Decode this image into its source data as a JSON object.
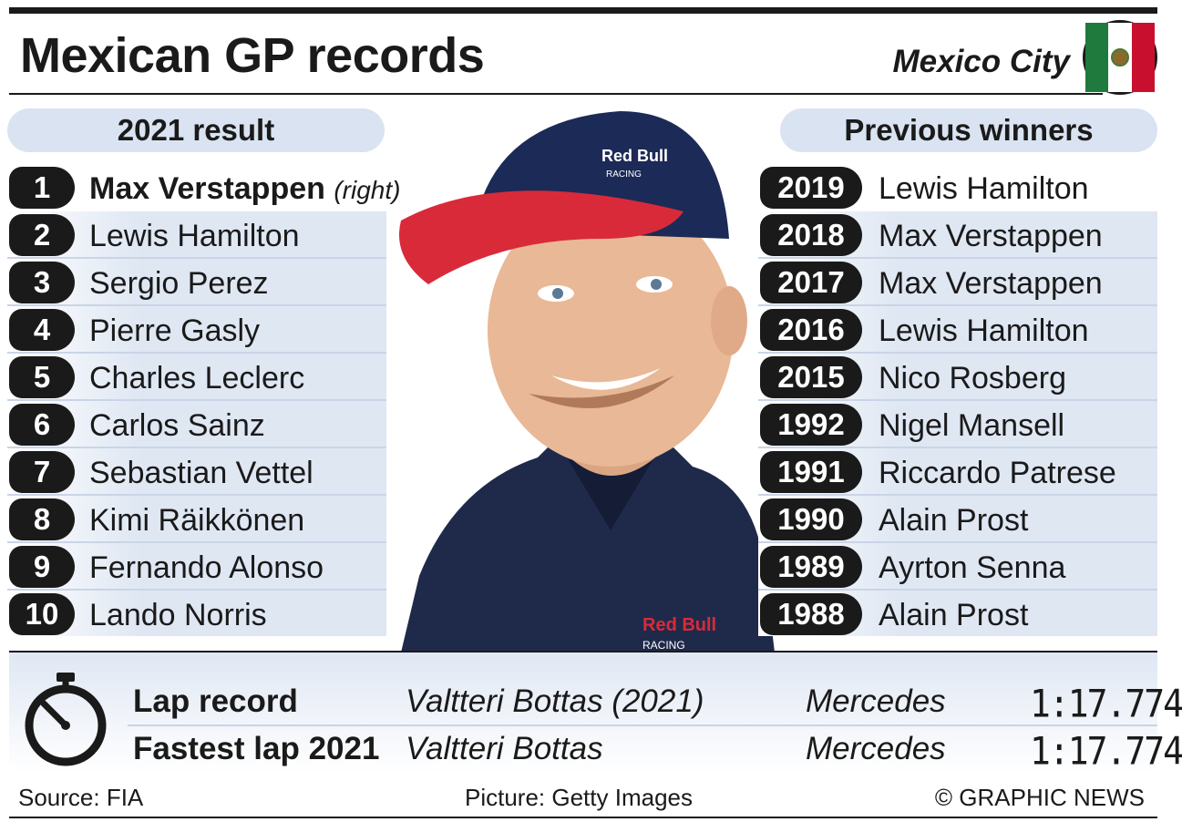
{
  "title": "Mexican GP records",
  "location": "Mexico City",
  "result_header": "2021 result",
  "winners_header": "Previous winners",
  "results": [
    {
      "pos": "1",
      "name": "Max Verstappen",
      "note": "(right)"
    },
    {
      "pos": "2",
      "name": "Lewis Hamilton"
    },
    {
      "pos": "3",
      "name": "Sergio Perez"
    },
    {
      "pos": "4",
      "name": "Pierre Gasly"
    },
    {
      "pos": "5",
      "name": "Charles Leclerc"
    },
    {
      "pos": "6",
      "name": "Carlos Sainz"
    },
    {
      "pos": "7",
      "name": "Sebastian Vettel"
    },
    {
      "pos": "8",
      "name": "Kimi Räikkönen"
    },
    {
      "pos": "9",
      "name": "Fernando Alonso"
    },
    {
      "pos": "10",
      "name": "Lando Norris"
    }
  ],
  "winners": [
    {
      "year": "2019",
      "name": "Lewis Hamilton"
    },
    {
      "year": "2018",
      "name": "Max Verstappen"
    },
    {
      "year": "2017",
      "name": "Max Verstappen"
    },
    {
      "year": "2016",
      "name": "Lewis Hamilton"
    },
    {
      "year": "2015",
      "name": "Nico Rosberg"
    },
    {
      "year": "1992",
      "name": "Nigel Mansell"
    },
    {
      "year": "1991",
      "name": "Riccardo Patrese"
    },
    {
      "year": "1990",
      "name": "Alain Prost"
    },
    {
      "year": "1989",
      "name": "Ayrton Senna"
    },
    {
      "year": "1988",
      "name": "Alain Prost"
    }
  ],
  "records": [
    {
      "label": "Lap record",
      "driver": "Valtteri Bottas (2021)",
      "team": "Mercedes",
      "time": "1:17.774"
    },
    {
      "label": "Fastest lap 2021",
      "driver": "Valtteri Bottas",
      "team": "Mercedes",
      "time": "1:17.774"
    }
  ],
  "photo_text": {
    "cap_logo": "Red Bull",
    "cap_logo_sub": "RACING",
    "shirt_logo": "Red Bull",
    "shirt_logo_sub": "RACING"
  },
  "footer": {
    "source": "Source: FIA",
    "picture": "Picture: Getty Images",
    "copyright": "© GRAPHIC NEWS"
  },
  "colors": {
    "ink": "#1a1a1a",
    "panel": "#d9e3f1",
    "row_shade": "#dfe7f3",
    "flag_green": "#1f7a3d",
    "flag_red": "#c8102e"
  },
  "icons": [
    "mexico-flag-icon",
    "stopwatch-icon"
  ]
}
